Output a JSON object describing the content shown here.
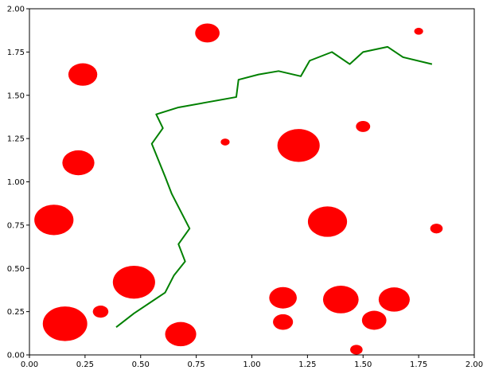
{
  "chart_data": {
    "type": "scatter",
    "title": "",
    "xlabel": "",
    "ylabel": "",
    "xlim": [
      0,
      2
    ],
    "ylim": [
      0,
      2
    ],
    "grid": false,
    "x_ticks": [
      "0.00",
      "0.25",
      "0.50",
      "0.75",
      "1.00",
      "1.25",
      "1.50",
      "1.75",
      "2.00"
    ],
    "y_ticks": [
      "0.00",
      "0.25",
      "0.50",
      "0.75",
      "1.00",
      "1.25",
      "1.50",
      "1.75",
      "2.00"
    ],
    "circles": {
      "color": "#ff0000",
      "points": [
        {
          "x": 0.16,
          "y": 0.18,
          "r": 0.1
        },
        {
          "x": 0.32,
          "y": 0.25,
          "r": 0.035
        },
        {
          "x": 0.47,
          "y": 0.42,
          "r": 0.095
        },
        {
          "x": 0.11,
          "y": 0.78,
          "r": 0.088
        },
        {
          "x": 0.22,
          "y": 1.11,
          "r": 0.072
        },
        {
          "x": 0.24,
          "y": 1.62,
          "r": 0.065
        },
        {
          "x": 0.8,
          "y": 1.86,
          "r": 0.055
        },
        {
          "x": 0.88,
          "y": 1.23,
          "r": 0.02
        },
        {
          "x": 0.68,
          "y": 0.12,
          "r": 0.07
        },
        {
          "x": 1.21,
          "y": 1.21,
          "r": 0.095
        },
        {
          "x": 1.5,
          "y": 1.32,
          "r": 0.032
        },
        {
          "x": 1.75,
          "y": 1.87,
          "r": 0.02
        },
        {
          "x": 1.34,
          "y": 0.77,
          "r": 0.088
        },
        {
          "x": 1.83,
          "y": 0.73,
          "r": 0.028
        },
        {
          "x": 1.14,
          "y": 0.33,
          "r": 0.062
        },
        {
          "x": 1.14,
          "y": 0.19,
          "r": 0.045
        },
        {
          "x": 1.4,
          "y": 0.32,
          "r": 0.08
        },
        {
          "x": 1.55,
          "y": 0.2,
          "r": 0.055
        },
        {
          "x": 1.64,
          "y": 0.32,
          "r": 0.07
        },
        {
          "x": 1.47,
          "y": 0.03,
          "r": 0.028
        }
      ]
    },
    "path": {
      "color": "#008000",
      "x": [
        0.39,
        0.47,
        0.54,
        0.61,
        0.65,
        0.7,
        0.67,
        0.72,
        0.68,
        0.64,
        0.61,
        0.55,
        0.6,
        0.57,
        0.67,
        0.8,
        0.93,
        0.94,
        1.03,
        1.12,
        1.22,
        1.26,
        1.36,
        1.44,
        1.5,
        1.61,
        1.68,
        1.81
      ],
      "y": [
        0.16,
        0.24,
        0.3,
        0.36,
        0.46,
        0.54,
        0.64,
        0.73,
        0.83,
        0.93,
        1.03,
        1.22,
        1.31,
        1.39,
        1.43,
        1.46,
        1.49,
        1.59,
        1.62,
        1.64,
        1.61,
        1.7,
        1.75,
        1.68,
        1.75,
        1.78,
        1.72,
        1.68
      ]
    }
  }
}
